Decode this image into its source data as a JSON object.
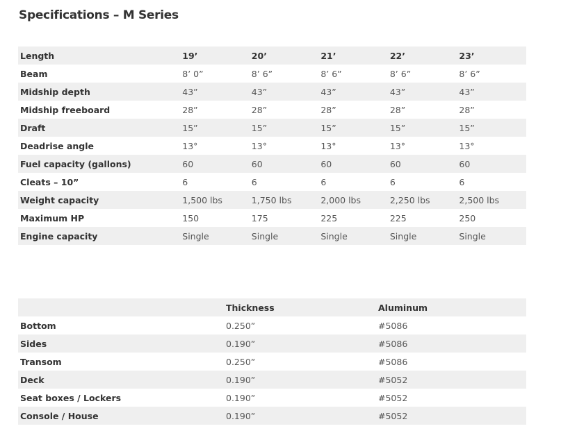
{
  "title": "Specifications – M Series",
  "specs": {
    "rows": [
      {
        "label": "Length",
        "values": [
          "19’",
          "20’",
          "21’",
          "22’",
          "23’"
        ],
        "header": true
      },
      {
        "label": "Beam",
        "values": [
          "8’ 0”",
          "8’ 6”",
          "8’ 6”",
          "8’ 6”",
          "8’ 6”"
        ]
      },
      {
        "label": "Midship depth",
        "values": [
          "43”",
          "43”",
          "43”",
          "43”",
          "43”"
        ]
      },
      {
        "label": "Midship freeboard",
        "values": [
          "28”",
          "28”",
          "28”",
          "28”",
          "28”"
        ]
      },
      {
        "label": "Draft",
        "values": [
          "15”",
          "15”",
          "15”",
          "15”",
          "15”"
        ]
      },
      {
        "label": "Deadrise angle",
        "values": [
          "13°",
          "13°",
          "13°",
          "13°",
          "13°"
        ]
      },
      {
        "label": "Fuel capacity (gallons)",
        "values": [
          "60",
          "60",
          "60",
          "60",
          "60"
        ]
      },
      {
        "label": "Cleats – 10”",
        "values": [
          "6",
          "6",
          "6",
          "6",
          "6"
        ]
      },
      {
        "label": "Weight capacity",
        "values": [
          "1,500 lbs",
          "1,750 lbs",
          "2,000 lbs",
          "2,250 lbs",
          "2,500 lbs"
        ]
      },
      {
        "label": "Maximum HP",
        "values": [
          "150",
          "175",
          "225",
          "225",
          "250"
        ]
      },
      {
        "label": "Engine capacity",
        "values": [
          "Single",
          "Single",
          "Single",
          "Single",
          "Single"
        ]
      }
    ]
  },
  "materials": {
    "headers": [
      "",
      "Thickness",
      "Aluminum"
    ],
    "rows": [
      [
        "Bottom",
        "0.250”",
        "#5086"
      ],
      [
        "Sides",
        "0.190”",
        "#5086"
      ],
      [
        "Transom",
        "0.250”",
        "#5086"
      ],
      [
        "Deck",
        "0.190”",
        "#5052"
      ],
      [
        "Seat boxes / Lockers",
        "0.190”",
        "#5052"
      ],
      [
        "Console / House",
        "0.190”",
        "#5052"
      ]
    ]
  }
}
